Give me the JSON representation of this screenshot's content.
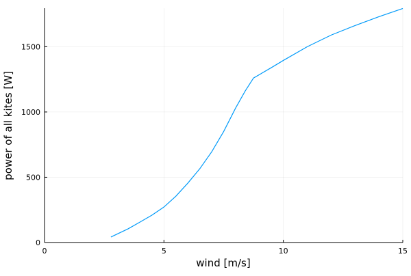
{
  "chart_data": {
    "type": "line",
    "xlabel": "wind [m/s]",
    "ylabel": "power of all kites [W]",
    "x": [
      2.78,
      3.5,
      4,
      4.5,
      5,
      5.5,
      6,
      6.5,
      7,
      7.5,
      8,
      8.4,
      8.75,
      9.5,
      10,
      11,
      12,
      13,
      14,
      15
    ],
    "series": [
      {
        "name": "power",
        "color": "#009af9",
        "values": [
          42,
          105,
          157,
          210,
          272,
          355,
          455,
          565,
          695,
          850,
          1030,
          1160,
          1260,
          1340,
          1395,
          1500,
          1589,
          1662,
          1730,
          1793
        ]
      }
    ],
    "xlim": [
      0,
      15
    ],
    "xticks": [
      0,
      5,
      10,
      15
    ],
    "ylim": [
      0,
      1795
    ],
    "yticks": [
      0,
      500,
      1000,
      1500
    ],
    "grid": true
  }
}
